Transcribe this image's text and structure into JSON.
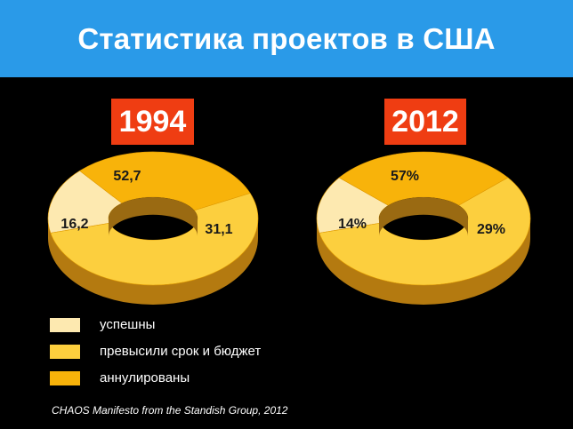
{
  "header": {
    "title": "Статистика проектов в США"
  },
  "chart_data": [
    {
      "type": "pie",
      "title": "1994",
      "slices": [
        {
          "category": "успешны",
          "value": 16.2,
          "label": "16,2"
        },
        {
          "category": "превысили срок и бюджет",
          "value": 52.7,
          "label": "52,7"
        },
        {
          "category": "аннулированы",
          "value": 31.1,
          "label": "31,1"
        }
      ]
    },
    {
      "type": "pie",
      "title": "2012",
      "slices": [
        {
          "category": "успешны",
          "value": 14,
          "label": "14%"
        },
        {
          "category": "превысили срок и бюджет",
          "value": 57,
          "label": "57%"
        },
        {
          "category": "аннулированы",
          "value": 29,
          "label": "29%"
        }
      ]
    }
  ],
  "legend": [
    {
      "label": "успешны",
      "color": "#fde9b0"
    },
    {
      "label": "превысили срок и бюджет",
      "color": "#fccf3e"
    },
    {
      "label": "аннулированы",
      "color": "#f8b30a"
    }
  ],
  "colors": {
    "title_bar": "#2a9ae8",
    "year_badge": "#ef3d12",
    "side_wall": "#b47a10"
  },
  "source": "CHAOS Manifesto from the Standish Group, 2012"
}
